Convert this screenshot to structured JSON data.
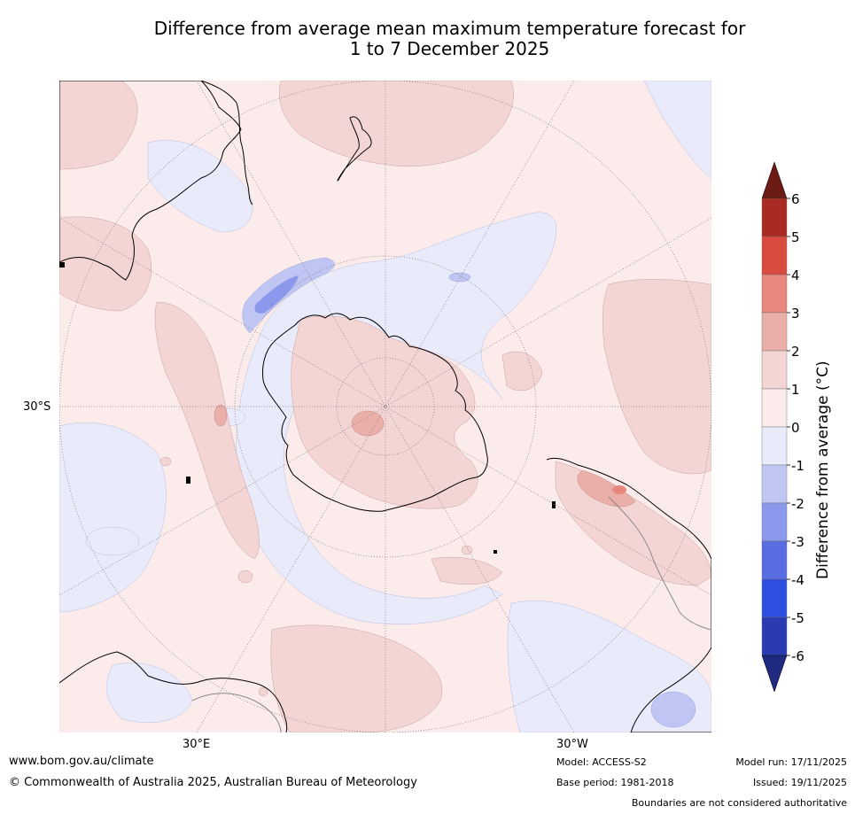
{
  "title": {
    "line1": "Difference from average mean maximum temperature forecast for",
    "line2": "1 to 7 December 2025"
  },
  "map": {
    "projection": "south-polar-stereographic",
    "lat_label": "30°S",
    "lon_labels": {
      "east": "30°E",
      "west": "30°W"
    },
    "colors": {
      "ocean_pos_0_1": "#fbeceb",
      "pos_1_2": "#f3d5d4",
      "pos_2_3": "#ebafaa",
      "neg_0_1": "#e9ebfb",
      "neg_1_2": "#c0c6f3",
      "neg_2_3": "#8c98ec",
      "coast": "#000000",
      "grid": "#7a7a7a"
    }
  },
  "colorbar": {
    "label": "Difference from average (°C)",
    "ticks": [
      "6",
      "5",
      "4",
      "3",
      "2",
      "1",
      "0",
      "-1",
      "-2",
      "-3",
      "-4",
      "-5",
      "-6"
    ],
    "bins": [
      {
        "range": ">6",
        "color": "#6b1a14"
      },
      {
        "range": "5 to 6",
        "color": "#a92a22"
      },
      {
        "range": "4 to 5",
        "color": "#d94a3f"
      },
      {
        "range": "3 to 4",
        "color": "#e7877e"
      },
      {
        "range": "2 to 3",
        "color": "#ebafaa"
      },
      {
        "range": "1 to 2",
        "color": "#f3d5d4"
      },
      {
        "range": "0 to 1",
        "color": "#fbeceb"
      },
      {
        "range": "-1 to 0",
        "color": "#e9ebfb"
      },
      {
        "range": "-2 to -1",
        "color": "#c0c6f3"
      },
      {
        "range": "-3 to -2",
        "color": "#8c98ec"
      },
      {
        "range": "-4 to -3",
        "color": "#5a6ee3"
      },
      {
        "range": "-5 to -4",
        "color": "#2e4fe0"
      },
      {
        "range": "-6 to -5",
        "color": "#2a3ab0"
      },
      {
        "range": "<-6",
        "color": "#1f2a80"
      }
    ]
  },
  "footer": {
    "website": "www.bom.gov.au/climate",
    "copyright": "© Commonwealth of Australia 2025, Australian Bureau of Meteorology",
    "model": "Model: ACCESS-S2",
    "base_period": "Base period: 1981-2018",
    "model_run": "Model run: 17/11/2025",
    "issued": "Issued: 19/11/2025",
    "disclaimer": "Boundaries are not considered authoritative"
  }
}
